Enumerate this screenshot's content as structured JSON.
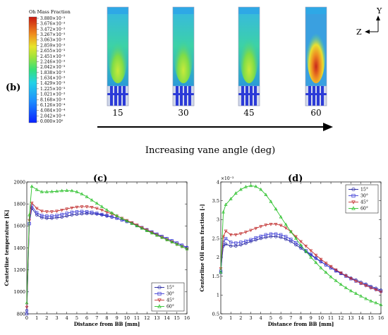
{
  "top": {
    "panel_label": "(b)",
    "colorbar_title": "Oh Mass Fraction",
    "colorbar_ticks": [
      "3.880×10⁻³",
      "3.676×10⁻³",
      "3.472×10⁻³",
      "3.267×10⁻³",
      "3.063×10⁻³",
      "2.859×10⁻³",
      "2.655×10⁻³",
      "2.451×10⁻³",
      "2.246×10⁻³",
      "2.042×10⁻³",
      "1.838×10⁻³",
      "1.634×10⁻³",
      "1.429×10⁻³",
      "1.225×10⁻³",
      "1.021×10⁻³",
      "8.168×10⁻⁴",
      "6.126×10⁻⁴",
      "4.084×10⁻⁴",
      "2.042×10⁻⁴",
      "0.000×10⁰"
    ],
    "angle_labels": [
      "15",
      "30",
      "45",
      "60"
    ],
    "arrow_label": "Increasing vane angle (deg)",
    "axis_z": "Z",
    "axis_y": "Y",
    "colors": {
      "low": "#2a3fd6",
      "mid": "#37c8b8",
      "high": "#c22818"
    }
  },
  "chart_data": [
    {
      "type": "line",
      "panel_label": "(c)",
      "xlabel": "Distance from BB [mm]",
      "ylabel": "Centerline temperature [K]",
      "xlim": [
        0,
        16
      ],
      "ylim": [
        800,
        2000
      ],
      "xticks": [
        0,
        1,
        2,
        3,
        4,
        5,
        6,
        7,
        8,
        9,
        10,
        11,
        12,
        13,
        14,
        15,
        16
      ],
      "yticks": [
        800,
        1000,
        1200,
        1400,
        1600,
        1800,
        2000
      ],
      "legend_position": "bottom-right",
      "x": [
        0,
        0.25,
        0.5,
        1,
        1.5,
        2,
        2.5,
        3,
        3.5,
        4,
        4.5,
        5,
        5.5,
        6,
        6.5,
        7,
        7.5,
        8,
        8.5,
        9,
        9.5,
        10,
        10.5,
        11,
        11.5,
        12,
        12.5,
        13,
        13.5,
        14,
        14.5,
        15,
        15.5,
        16
      ],
      "series": [
        {
          "name": "15°",
          "color": "#1f1f9e",
          "marker": "circle",
          "values": [
            830,
            1620,
            1760,
            1700,
            1675,
            1670,
            1670,
            1675,
            1680,
            1690,
            1700,
            1705,
            1710,
            1712,
            1712,
            1708,
            1700,
            1690,
            1680,
            1670,
            1655,
            1640,
            1625,
            1605,
            1585,
            1565,
            1545,
            1525,
            1505,
            1485,
            1465,
            1445,
            1425,
            1405
          ]
        },
        {
          "name": "30°",
          "color": "#3d3dd6",
          "marker": "square",
          "values": [
            800,
            1620,
            1780,
            1720,
            1695,
            1690,
            1690,
            1695,
            1705,
            1715,
            1725,
            1730,
            1732,
            1730,
            1725,
            1715,
            1705,
            1695,
            1683,
            1670,
            1655,
            1640,
            1625,
            1605,
            1585,
            1565,
            1545,
            1525,
            1505,
            1485,
            1465,
            1445,
            1425,
            1400
          ]
        },
        {
          "name": "45°",
          "color": "#c23232",
          "marker": "triangle-down",
          "values": [
            860,
            1650,
            1810,
            1760,
            1735,
            1730,
            1730,
            1735,
            1745,
            1755,
            1765,
            1772,
            1775,
            1775,
            1770,
            1760,
            1745,
            1725,
            1710,
            1690,
            1670,
            1650,
            1630,
            1608,
            1585,
            1563,
            1540,
            1518,
            1497,
            1475,
            1455,
            1432,
            1412,
            1390
          ]
        },
        {
          "name": "60°",
          "color": "#2bc12b",
          "marker": "triangle",
          "values": [
            900,
            1700,
            1960,
            1930,
            1910,
            1910,
            1912,
            1915,
            1920,
            1922,
            1920,
            1910,
            1890,
            1865,
            1835,
            1805,
            1775,
            1745,
            1718,
            1692,
            1668,
            1645,
            1622,
            1600,
            1578,
            1556,
            1535,
            1514,
            1494,
            1473,
            1453,
            1432,
            1412,
            1390
          ]
        }
      ]
    },
    {
      "type": "line",
      "panel_label": "(d)",
      "xlabel": "Distance from BB [mm]",
      "ylabel": "Centerline OH mass fraction [-]",
      "y_multiplier": "×10⁻³",
      "xlim": [
        0,
        16
      ],
      "ylim": [
        0.5,
        4
      ],
      "xticks": [
        0,
        1,
        2,
        3,
        4,
        5,
        6,
        7,
        8,
        9,
        10,
        11,
        12,
        13,
        14,
        15,
        16
      ],
      "yticks": [
        0.5,
        1,
        1.5,
        2,
        2.5,
        3,
        3.5,
        4
      ],
      "legend_position": "top-right",
      "x": [
        0,
        0.25,
        0.5,
        1,
        1.5,
        2,
        2.5,
        3,
        3.5,
        4,
        4.5,
        5,
        5.5,
        6,
        6.5,
        7,
        7.5,
        8,
        8.5,
        9,
        9.5,
        10,
        10.5,
        11,
        11.5,
        12,
        12.5,
        13,
        13.5,
        14,
        14.5,
        15,
        15.5,
        16
      ],
      "series": [
        {
          "name": "15°",
          "color": "#1f1f9e",
          "marker": "circle",
          "values": [
            1.65,
            2.3,
            2.35,
            2.3,
            2.3,
            2.33,
            2.37,
            2.42,
            2.46,
            2.5,
            2.53,
            2.55,
            2.55,
            2.53,
            2.48,
            2.42,
            2.33,
            2.24,
            2.15,
            2.06,
            1.97,
            1.88,
            1.8,
            1.72,
            1.65,
            1.58,
            1.52,
            1.45,
            1.4,
            1.34,
            1.29,
            1.23,
            1.18,
            1.13
          ]
        },
        {
          "name": "30°",
          "color": "#3d3dd6",
          "marker": "square",
          "values": [
            1.6,
            2.4,
            2.5,
            2.4,
            2.38,
            2.4,
            2.43,
            2.47,
            2.52,
            2.56,
            2.6,
            2.62,
            2.62,
            2.6,
            2.55,
            2.48,
            2.39,
            2.29,
            2.18,
            2.08,
            1.98,
            1.89,
            1.8,
            1.72,
            1.64,
            1.57,
            1.5,
            1.43,
            1.37,
            1.31,
            1.26,
            1.2,
            1.15,
            1.1
          ]
        },
        {
          "name": "45°",
          "color": "#c23232",
          "marker": "triangle-down",
          "values": [
            1.7,
            2.55,
            2.7,
            2.6,
            2.6,
            2.63,
            2.67,
            2.72,
            2.77,
            2.82,
            2.86,
            2.88,
            2.88,
            2.85,
            2.78,
            2.68,
            2.55,
            2.42,
            2.3,
            2.18,
            2.06,
            1.95,
            1.85,
            1.76,
            1.67,
            1.59,
            1.51,
            1.44,
            1.37,
            1.31,
            1.25,
            1.19,
            1.14,
            1.08
          ]
        },
        {
          "name": "60°",
          "color": "#2bc12b",
          "marker": "triangle",
          "values": [
            1.6,
            3.2,
            3.4,
            3.55,
            3.7,
            3.8,
            3.87,
            3.9,
            3.88,
            3.8,
            3.66,
            3.48,
            3.28,
            3.07,
            2.87,
            2.68,
            2.5,
            2.32,
            2.16,
            2.0,
            1.86,
            1.72,
            1.6,
            1.48,
            1.38,
            1.28,
            1.19,
            1.11,
            1.04,
            0.97,
            0.9,
            0.84,
            0.79,
            0.74
          ]
        }
      ]
    }
  ]
}
